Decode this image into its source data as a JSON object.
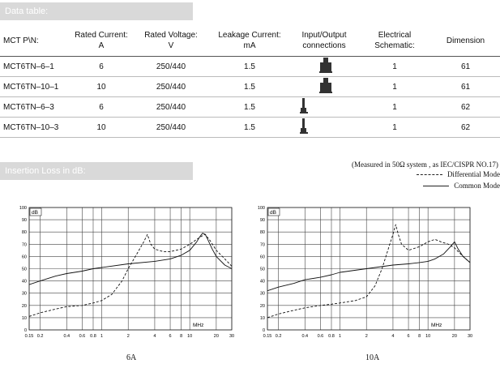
{
  "data_table": {
    "heading": "Data table:",
    "columns": [
      [
        "MCT P\\N:"
      ],
      [
        "Rated Current:",
        "A"
      ],
      [
        "Rated Voltage:",
        "V"
      ],
      [
        "Leakage  Current:",
        "mA"
      ],
      [
        "Input/Output",
        "connections"
      ],
      [
        "Electrical",
        "Schematic:"
      ],
      [
        "Dimension"
      ]
    ],
    "rows": [
      {
        "pn": "MCT6TN–6–1",
        "current": "6",
        "voltage": "250/440",
        "leakage": "1.5",
        "connection": "terminal-block-icon",
        "schematic": "1",
        "dimension": "61"
      },
      {
        "pn": "MCT6TN–10–1",
        "current": "10",
        "voltage": "250/440",
        "leakage": "1.5",
        "connection": "terminal-block-icon",
        "schematic": "1",
        "dimension": "61"
      },
      {
        "pn": "MCT6TN–6–3",
        "current": "6",
        "voltage": "250/440",
        "leakage": "1.5",
        "connection": "faston-terminal-icon",
        "schematic": "1",
        "dimension": "62"
      },
      {
        "pn": "MCT6TN–10–3",
        "current": "10",
        "voltage": "250/440",
        "leakage": "1.5",
        "connection": "faston-terminal-icon",
        "schematic": "1",
        "dimension": "62"
      }
    ]
  },
  "insertion_loss": {
    "heading": "Insertion Loss in dB:",
    "measured_note": "(Measured in 50Ω system , as IEC/CISPR NO.17)",
    "legend_differential": "Differential  Mode",
    "legend_common": "Common  Mode"
  },
  "chart_data": [
    {
      "type": "line",
      "title": "6A",
      "xlabel": "MHz",
      "ylabel": "dB",
      "xscale": "log",
      "xlim": [
        0.15,
        30
      ],
      "ylim": [
        0,
        100
      ],
      "x_ticks": [
        "0.15",
        "0.2",
        "0.4",
        "0.6",
        "0.8",
        "1",
        "2",
        "4",
        "6",
        "8",
        "10",
        "20",
        "30"
      ],
      "y_ticks": [
        "0",
        "10",
        "20",
        "30",
        "40",
        "50",
        "60",
        "70",
        "80",
        "90",
        "100"
      ],
      "grid": true,
      "series": [
        {
          "name": "Differential  Mode",
          "style": "dashed",
          "x": [
            0.15,
            0.2,
            0.3,
            0.4,
            0.6,
            0.8,
            1.0,
            1.3,
            1.7,
            2.0,
            2.5,
            3.0,
            3.3,
            3.6,
            4.0,
            5.0,
            6.0,
            8.0,
            10,
            12,
            14,
            15,
            17,
            20,
            25,
            30
          ],
          "y": [
            11,
            14,
            17,
            19,
            20,
            22,
            24,
            29,
            40,
            50,
            62,
            72,
            78,
            70,
            66,
            64,
            64,
            66,
            70,
            74,
            77,
            78,
            73,
            65,
            58,
            52
          ]
        },
        {
          "name": "Common  Mode",
          "style": "solid",
          "x": [
            0.15,
            0.2,
            0.3,
            0.4,
            0.6,
            0.8,
            1,
            2,
            4,
            6,
            8,
            10,
            12,
            13,
            14,
            15,
            16,
            18,
            20,
            25,
            30
          ],
          "y": [
            37,
            40,
            44,
            46,
            48,
            50,
            51,
            54,
            56,
            58,
            61,
            65,
            72,
            76,
            79,
            78,
            74,
            66,
            60,
            53,
            50
          ]
        }
      ]
    },
    {
      "type": "line",
      "title": "10A",
      "xlabel": "MHz",
      "ylabel": "dB",
      "xscale": "log",
      "xlim": [
        0.15,
        30
      ],
      "ylim": [
        0,
        100
      ],
      "x_ticks": [
        "0.15",
        "0.2",
        "0.4",
        "0.6",
        "0.8",
        "1",
        "2",
        "4",
        "6",
        "8",
        "10",
        "20",
        "30"
      ],
      "y_ticks": [
        "0",
        "10",
        "20",
        "30",
        "40",
        "50",
        "60",
        "70",
        "80",
        "90",
        "100"
      ],
      "grid": true,
      "series": [
        {
          "name": "Differential  Mode",
          "style": "dashed",
          "x": [
            0.15,
            0.2,
            0.3,
            0.4,
            0.6,
            0.8,
            1.0,
            1.5,
            2.0,
            2.5,
            3.0,
            3.5,
            4.0,
            4.3,
            4.6,
            5.0,
            6.0,
            8.0,
            10,
            12,
            14,
            17,
            20,
            25,
            30
          ],
          "y": [
            10,
            13,
            16,
            18,
            20,
            21,
            22,
            24,
            27,
            36,
            50,
            65,
            78,
            86,
            78,
            70,
            65,
            68,
            72,
            74,
            72,
            70,
            67,
            60,
            55
          ]
        },
        {
          "name": "Common  Mode",
          "style": "solid",
          "x": [
            0.15,
            0.2,
            0.3,
            0.4,
            0.6,
            0.8,
            1,
            2,
            4,
            6,
            8,
            10,
            12,
            15,
            18,
            20,
            22,
            25,
            30
          ],
          "y": [
            32,
            35,
            38,
            41,
            43,
            45,
            47,
            50,
            53,
            54,
            55,
            56,
            58,
            62,
            68,
            72,
            66,
            60,
            55
          ]
        }
      ]
    }
  ]
}
